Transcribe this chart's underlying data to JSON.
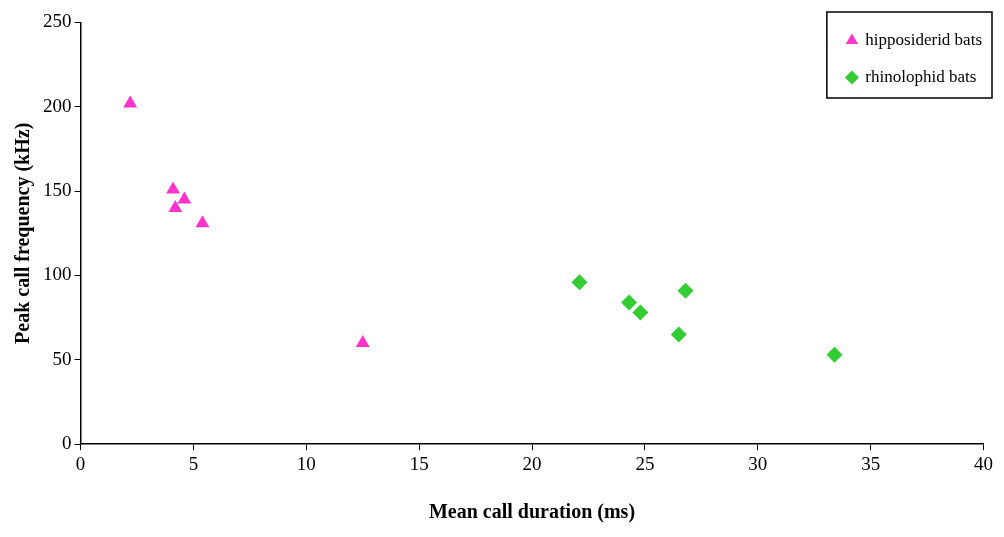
{
  "chart_data": {
    "type": "scatter",
    "xlabel": "Mean call duration (ms)",
    "ylabel": "Peak call frequency (kHz)",
    "xlim": [
      0,
      40
    ],
    "xticks": [
      0,
      5,
      10,
      15,
      20,
      25,
      30,
      35,
      40
    ],
    "ylim": [
      0,
      250
    ],
    "yticks": [
      0,
      50,
      100,
      150,
      200,
      250
    ],
    "grid": false,
    "legend": "top right",
    "series": [
      {
        "name": "hipposiderid bats",
        "color": "#ff33cc",
        "marker": "triangle",
        "x": [
          2.2,
          4.1,
          4.6,
          4.2,
          5.4,
          12.5
        ],
        "values": [
          202,
          151,
          145,
          140,
          131,
          60
        ]
      },
      {
        "name": "rhinolophid bats",
        "color": "#33cc33",
        "marker": "diamond",
        "x": [
          22.1,
          24.3,
          24.8,
          26.8,
          26.5,
          33.4
        ],
        "values": [
          96,
          84,
          78,
          91,
          65,
          53
        ]
      }
    ]
  }
}
